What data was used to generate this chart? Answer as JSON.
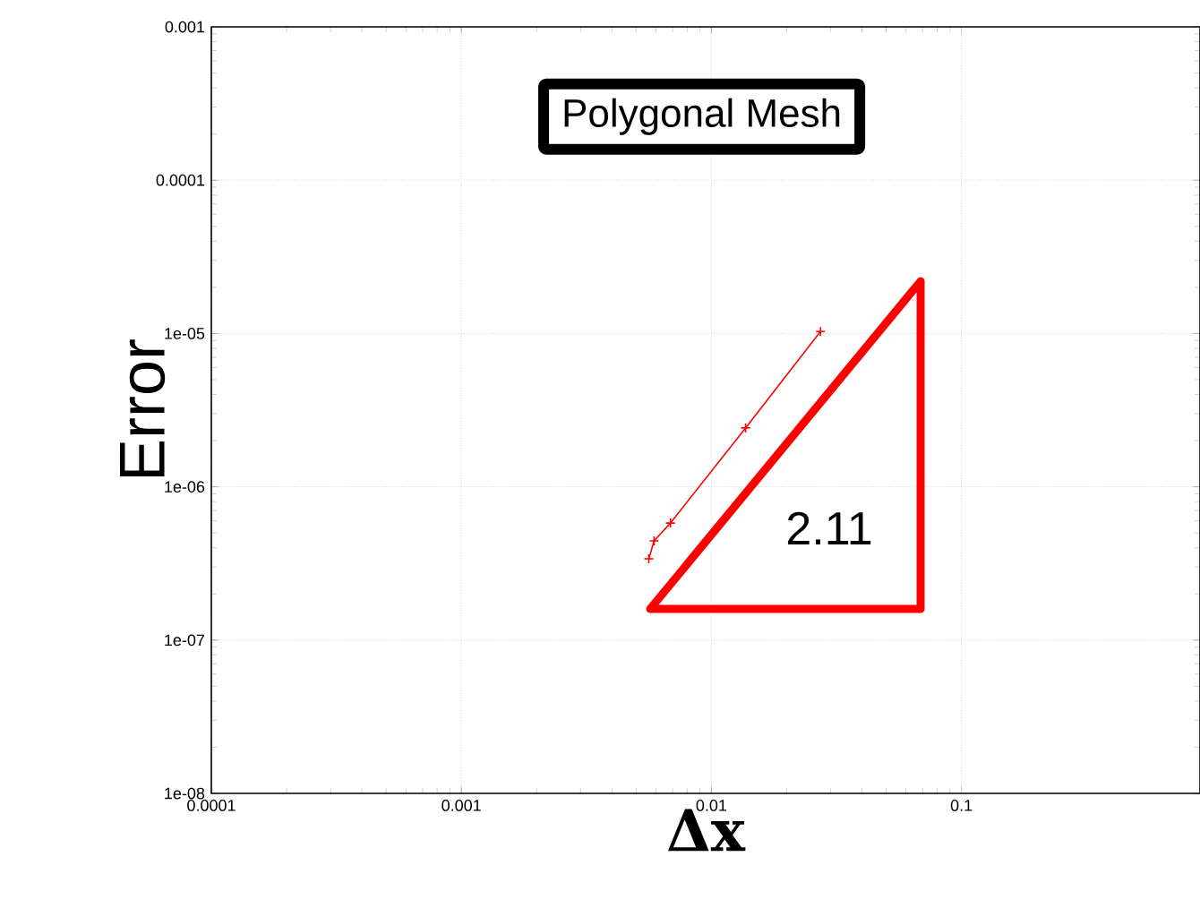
{
  "chart_data": {
    "type": "line",
    "title": "Polygonal Mesh",
    "xlabel": "Δx",
    "ylabel": "Error",
    "log": "xy",
    "grid": true,
    "xlim": [
      0.0001,
      0.9
    ],
    "ylim": [
      1e-08,
      0.001
    ],
    "xticks": [
      0.0001,
      0.001,
      0.01,
      0.1
    ],
    "yticks": [
      {
        "value": 1e-08,
        "label": "1e-08"
      },
      {
        "value": 1e-07,
        "label": "1e-07"
      },
      {
        "value": 1e-06,
        "label": "1e-06"
      },
      {
        "value": 1e-05,
        "label": "1e-05"
      },
      0.0001,
      0.001
    ],
    "series": [
      {
        "color": "#ff0000",
        "marker": "cross",
        "x": [
          0.0273,
          0.0137,
          0.00686,
          0.0059,
          0.00562
        ],
        "values": [
          1.03e-05,
          2.42e-06,
          5.8e-07,
          4.44e-07,
          3.39e-07
        ]
      }
    ],
    "annotations": [
      "2.11"
    ]
  }
}
